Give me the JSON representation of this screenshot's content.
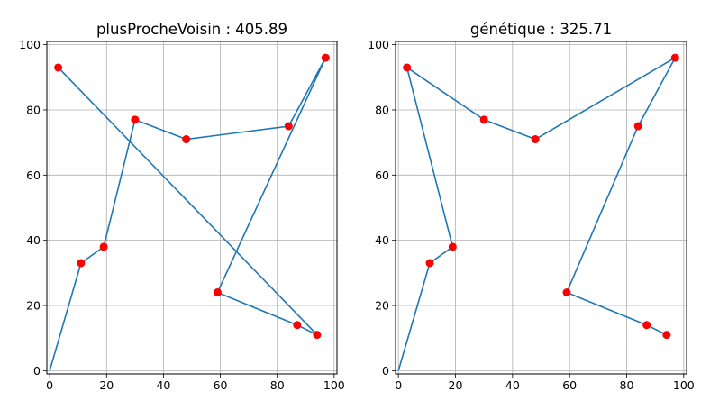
{
  "chart_data": [
    {
      "type": "line",
      "title": "plusProcheVoisin : 405.89",
      "xlabel": "",
      "ylabel": "",
      "xlim": [
        -1,
        101
      ],
      "ylim": [
        -1,
        101
      ],
      "xticks": [
        0,
        20,
        40,
        60,
        80,
        100
      ],
      "yticks": [
        0,
        20,
        40,
        60,
        80,
        100
      ],
      "xtick_labels": [
        "0",
        "20",
        "40",
        "60",
        "80",
        "100"
      ],
      "ytick_labels": [
        "0",
        "20",
        "40",
        "60",
        "80",
        "100"
      ],
      "grid": true,
      "line_color": "#1f77b4",
      "point_color": "#ff0000",
      "points": [
        {
          "x": 3,
          "y": 93
        },
        {
          "x": 11,
          "y": 33
        },
        {
          "x": 19,
          "y": 38
        },
        {
          "x": 30,
          "y": 77
        },
        {
          "x": 48,
          "y": 71
        },
        {
          "x": 84,
          "y": 75
        },
        {
          "x": 97,
          "y": 96
        },
        {
          "x": 59,
          "y": 24
        },
        {
          "x": 87,
          "y": 14
        },
        {
          "x": 94,
          "y": 11
        }
      ],
      "path": [
        {
          "x": 0,
          "y": 0
        },
        {
          "x": 11,
          "y": 33
        },
        {
          "x": 19,
          "y": 38
        },
        {
          "x": 30,
          "y": 77
        },
        {
          "x": 48,
          "y": 71
        },
        {
          "x": 84,
          "y": 75
        },
        {
          "x": 97,
          "y": 96
        },
        {
          "x": 59,
          "y": 24
        },
        {
          "x": 87,
          "y": 14
        },
        {
          "x": 94,
          "y": 11
        },
        {
          "x": 3,
          "y": 93
        }
      ]
    },
    {
      "type": "line",
      "title": "génétique : 325.71",
      "xlabel": "",
      "ylabel": "",
      "xlim": [
        -1,
        101
      ],
      "ylim": [
        -1,
        101
      ],
      "xticks": [
        0,
        20,
        40,
        60,
        80,
        100
      ],
      "yticks": [
        0,
        20,
        40,
        60,
        80,
        100
      ],
      "xtick_labels": [
        "0",
        "20",
        "40",
        "60",
        "80",
        "100"
      ],
      "ytick_labels": [
        "0",
        "20",
        "40",
        "60",
        "80",
        "100"
      ],
      "grid": true,
      "line_color": "#1f77b4",
      "point_color": "#ff0000",
      "points": [
        {
          "x": 3,
          "y": 93
        },
        {
          "x": 11,
          "y": 33
        },
        {
          "x": 19,
          "y": 38
        },
        {
          "x": 30,
          "y": 77
        },
        {
          "x": 48,
          "y": 71
        },
        {
          "x": 84,
          "y": 75
        },
        {
          "x": 97,
          "y": 96
        },
        {
          "x": 59,
          "y": 24
        },
        {
          "x": 87,
          "y": 14
        },
        {
          "x": 94,
          "y": 11
        }
      ],
      "path": [
        {
          "x": 0,
          "y": 0
        },
        {
          "x": 11,
          "y": 33
        },
        {
          "x": 19,
          "y": 38
        },
        {
          "x": 3,
          "y": 93
        },
        {
          "x": 30,
          "y": 77
        },
        {
          "x": 48,
          "y": 71
        },
        {
          "x": 97,
          "y": 96
        },
        {
          "x": 84,
          "y": 75
        },
        {
          "x": 59,
          "y": 24
        },
        {
          "x": 87,
          "y": 14
        },
        {
          "x": 94,
          "y": 11
        }
      ]
    }
  ]
}
